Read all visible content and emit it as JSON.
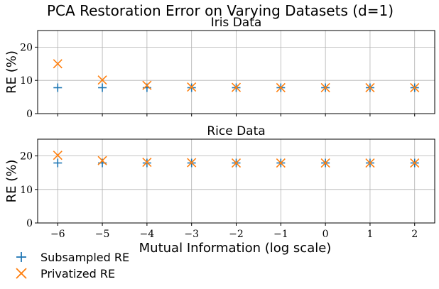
{
  "figure": {
    "suptitle": "PCA Restoration Error on Varying Datasets (d=1)",
    "xlabel": "Mutual Information (log scale)"
  },
  "legend": {
    "items": [
      {
        "label": "Subsampled RE",
        "marker": "plus",
        "color": "#1f77b4"
      },
      {
        "label": "Privatized RE",
        "marker": "x",
        "color": "#ff7f0e"
      }
    ]
  },
  "colors": {
    "subsampled": "#1f77b4",
    "privatized": "#ff7f0e"
  },
  "chart_data": [
    {
      "type": "scatter",
      "title": "Iris Data",
      "xlabel": "",
      "ylabel": "RE (%)",
      "x": [
        -6,
        -5,
        -4,
        -3,
        -2,
        -1,
        0,
        1,
        2
      ],
      "xticks": [
        -6,
        -5,
        -4,
        -3,
        -2,
        -1,
        0,
        1,
        2
      ],
      "xlim": [
        -6.45,
        2.45
      ],
      "ylim": [
        0,
        25
      ],
      "yticks": [
        0,
        10,
        20
      ],
      "grid": true,
      "series": [
        {
          "name": "Subsampled RE",
          "marker": "plus",
          "values": [
            7.8,
            7.8,
            7.8,
            7.8,
            7.8,
            7.8,
            7.8,
            7.8,
            7.8
          ]
        },
        {
          "name": "Privatized RE",
          "marker": "x",
          "values": [
            15.0,
            10.1,
            8.5,
            8.0,
            7.9,
            7.8,
            7.8,
            7.8,
            7.8
          ]
        }
      ]
    },
    {
      "type": "scatter",
      "title": "Rice Data",
      "xlabel": "Mutual Information (log scale)",
      "ylabel": "RE (%)",
      "x": [
        -6,
        -5,
        -4,
        -3,
        -2,
        -1,
        0,
        1,
        2
      ],
      "xticks": [
        -6,
        -5,
        -4,
        -3,
        -2,
        -1,
        0,
        1,
        2
      ],
      "xlim": [
        -6.45,
        2.45
      ],
      "ylim": [
        0,
        25
      ],
      "yticks": [
        0,
        10,
        20
      ],
      "grid": true,
      "series": [
        {
          "name": "Subsampled RE",
          "marker": "plus",
          "values": [
            17.9,
            17.9,
            17.9,
            17.9,
            17.9,
            17.9,
            17.9,
            17.9,
            17.9
          ]
        },
        {
          "name": "Privatized RE",
          "marker": "x",
          "values": [
            20.2,
            18.6,
            18.1,
            18.0,
            17.9,
            17.9,
            17.9,
            17.9,
            17.9
          ]
        }
      ]
    }
  ]
}
